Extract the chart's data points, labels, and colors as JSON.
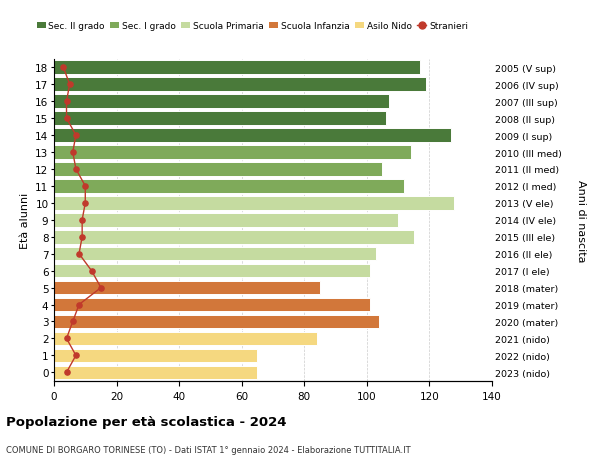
{
  "ages": [
    18,
    17,
    16,
    15,
    14,
    13,
    12,
    11,
    10,
    9,
    8,
    7,
    6,
    5,
    4,
    3,
    2,
    1,
    0
  ],
  "bar_values": [
    117,
    119,
    107,
    106,
    127,
    114,
    105,
    112,
    128,
    110,
    115,
    103,
    101,
    85,
    101,
    104,
    84,
    65,
    65
  ],
  "stranieri": [
    3,
    5,
    4,
    4,
    7,
    6,
    7,
    10,
    10,
    9,
    9,
    8,
    12,
    15,
    8,
    6,
    4,
    7,
    4
  ],
  "right_labels": [
    "2005 (V sup)",
    "2006 (IV sup)",
    "2007 (III sup)",
    "2008 (II sup)",
    "2009 (I sup)",
    "2010 (III med)",
    "2011 (II med)",
    "2012 (I med)",
    "2013 (V ele)",
    "2014 (IV ele)",
    "2015 (III ele)",
    "2016 (II ele)",
    "2017 (I ele)",
    "2018 (mater)",
    "2019 (mater)",
    "2020 (mater)",
    "2021 (nido)",
    "2022 (nido)",
    "2023 (nido)"
  ],
  "bar_colors_by_age": {
    "18": "#4a7a3a",
    "17": "#4a7a3a",
    "16": "#4a7a3a",
    "15": "#4a7a3a",
    "14": "#4a7a3a",
    "13": "#7faa5a",
    "12": "#7faa5a",
    "11": "#7faa5a",
    "10": "#c5dba0",
    "9": "#c5dba0",
    "8": "#c5dba0",
    "7": "#c5dba0",
    "6": "#c5dba0",
    "5": "#d2773a",
    "4": "#d2773a",
    "3": "#d2773a",
    "2": "#f5d880",
    "1": "#f5d880",
    "0": "#f5d880"
  },
  "stranieri_color": "#c0392b",
  "stranieri_line_color": "#c0392b",
  "title1": "Popolazione per età scolastica - 2024",
  "title2": "COMUNE DI BORGARO TORINESE (TO) - Dati ISTAT 1° gennaio 2024 - Elaborazione TUTTITALIA.IT",
  "ylabel": "Età alunni",
  "right_ylabel": "Anni di nascita",
  "xlim": [
    0,
    140
  ],
  "xticks": [
    0,
    20,
    40,
    60,
    80,
    100,
    120,
    140
  ],
  "bg_color": "#ffffff",
  "grid_color": "#cccccc",
  "legend_items": [
    {
      "label": "Sec. II grado",
      "color": "#4a7a3a"
    },
    {
      "label": "Sec. I grado",
      "color": "#7faa5a"
    },
    {
      "label": "Scuola Primaria",
      "color": "#c5dba0"
    },
    {
      "label": "Scuola Infanzia",
      "color": "#d2773a"
    },
    {
      "label": "Asilo Nido",
      "color": "#f5d880"
    },
    {
      "label": "Stranieri",
      "color": "#c0392b"
    }
  ]
}
